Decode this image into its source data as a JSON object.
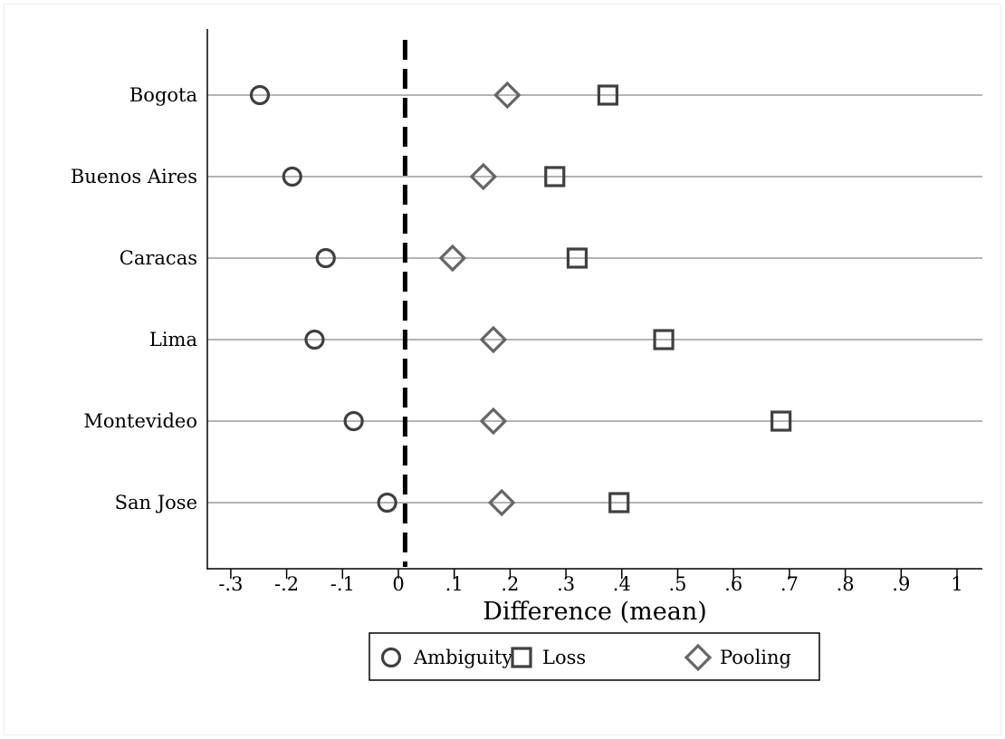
{
  "chart_data": {
    "type": "scatter",
    "categories": [
      "Bogota",
      "Buenos Aires",
      "Caracas",
      "Lima",
      "Montevideo",
      "San Jose"
    ],
    "series": [
      {
        "name": "Ambiguity",
        "marker": "circle",
        "values": [
          -0.248,
          -0.19,
          -0.13,
          -0.15,
          -0.08,
          -0.02
        ]
      },
      {
        "name": "Loss",
        "marker": "square",
        "values": [
          0.375,
          0.28,
          0.32,
          0.475,
          0.685,
          0.395
        ]
      },
      {
        "name": "Pooling",
        "marker": "diamond",
        "values": [
          0.195,
          0.152,
          0.097,
          0.17,
          0.17,
          0.185
        ]
      }
    ],
    "xlabel": "Difference (mean)",
    "ylabel": "",
    "xlim": [
      -0.35,
      1.05
    ],
    "xticks": [
      "-.3",
      "-.2",
      "-.1",
      "0",
      ".1",
      ".2",
      ".3",
      ".4",
      ".5",
      ".6",
      ".7",
      ".8",
      ".9",
      "1"
    ],
    "xtick_values": [
      -0.3,
      -0.2,
      -0.1,
      0,
      0.1,
      0.2,
      0.3,
      0.4,
      0.5,
      0.6,
      0.7,
      0.8,
      0.9,
      1.0
    ],
    "reference_line": {
      "x": 0.012,
      "style": "dashed"
    },
    "grid": "horizontal",
    "legend_position": "bottom",
    "colors": {
      "markers": "#404040",
      "pooling": "#666666",
      "gridline": "#888888",
      "axis": "#000000"
    }
  }
}
